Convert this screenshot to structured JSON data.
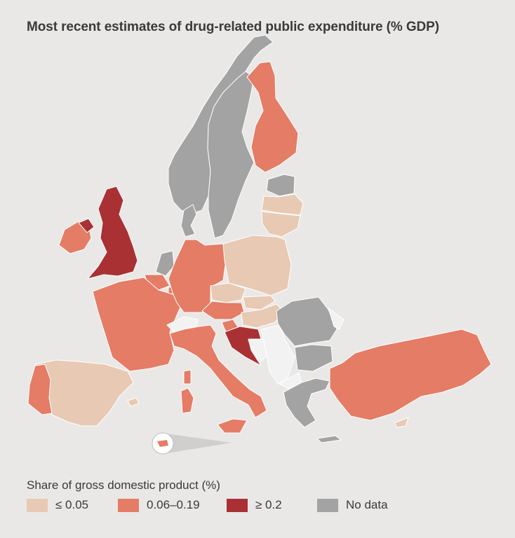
{
  "title": "Most recent estimates of drug-related public expenditure (% GDP)",
  "legend": {
    "title": "Share of gross domestic product (%)",
    "items": [
      {
        "label": "≤ 0.05",
        "color": "#e8c9b3"
      },
      {
        "label": "0.06–0.19",
        "color": "#e57c66"
      },
      {
        "label": "≥ 0.2",
        "color": "#a93134"
      },
      {
        "label": "No data",
        "color": "#a3a3a3"
      }
    ]
  },
  "map_colors": {
    "background": "#e9e8e6",
    "non_member": "#f2f2f2",
    "border": "#ffffff"
  }
}
